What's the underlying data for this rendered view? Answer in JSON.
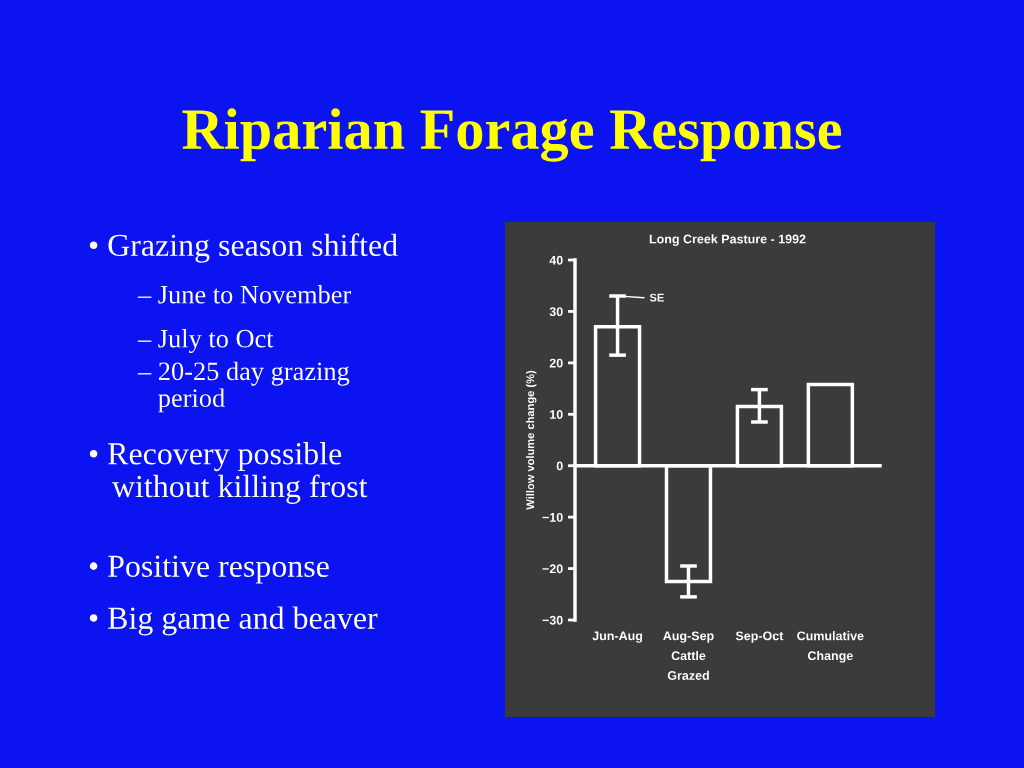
{
  "chart_data": {
    "type": "bar",
    "subtitle": "Riparian Forage Response",
    "title": "Long Creek Pasture - 1992",
    "ylabel": "Willow volume change (%)",
    "categories": [
      "Jun-Aug",
      "Aug-Sep\nCattle\nGrazed",
      "Sep-Oct",
      "Cumulative\nChange"
    ],
    "values": [
      27,
      -22.5,
      11.5,
      15.8
    ],
    "errors": [
      [
        21.5,
        33
      ],
      [
        -25.5,
        -19.5
      ],
      [
        8.5,
        14.8
      ],
      null
    ],
    "color": "#ffffff",
    "ylim": [
      -30,
      40
    ],
    "yticks": [
      -30,
      -20,
      -10,
      0,
      10,
      20,
      30,
      40
    ],
    "annotations": [
      {
        "text": "SE",
        "x": "Jun-Aug",
        "y": 33
      },
      "• Grazing season shifted",
      "– June to November",
      "– July to Oct",
      "– 20-25 day grazing\n   period",
      "• Recovery possible\n   without killing frost",
      "• Positive response",
      "• Big game and beaver"
    ]
  }
}
